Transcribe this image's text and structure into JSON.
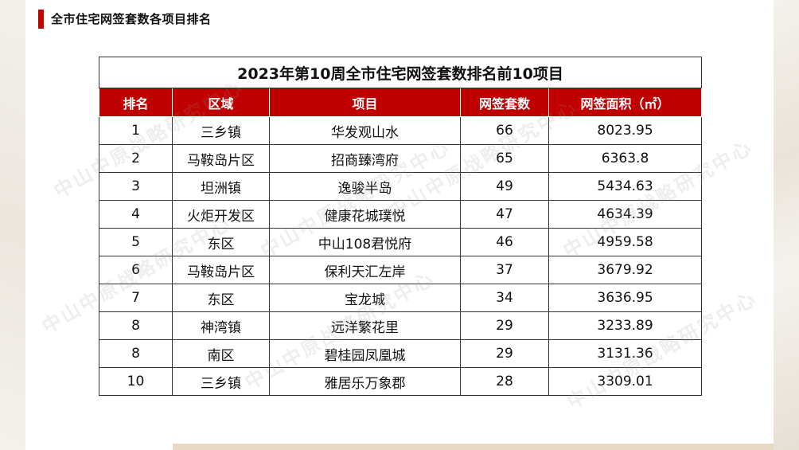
{
  "header": {
    "title": "全市住宅网签套数各项目排名"
  },
  "table": {
    "caption": "2023年第10周全市住宅网签套数排名前10项目",
    "columns": [
      "排名",
      "区域",
      "项目",
      "网签套数",
      "网签面积（㎡）"
    ],
    "rows": [
      [
        "1",
        "三乡镇",
        "华发观山水",
        "66",
        "8023.95"
      ],
      [
        "2",
        "马鞍岛片区",
        "招商臻湾府",
        "65",
        "6363.8"
      ],
      [
        "3",
        "坦洲镇",
        "逸骏半岛",
        "49",
        "5434.63"
      ],
      [
        "4",
        "火炬开发区",
        "健康花城璞悦",
        "47",
        "4634.39"
      ],
      [
        "5",
        "东区",
        "中山108君悦府",
        "46",
        "4959.58"
      ],
      [
        "6",
        "马鞍岛片区",
        "保利天汇左岸",
        "37",
        "3679.92"
      ],
      [
        "7",
        "东区",
        "宝龙城",
        "34",
        "3636.95"
      ],
      [
        "8",
        "神湾镇",
        "远洋繁花里",
        "29",
        "3233.89"
      ],
      [
        "8",
        "南区",
        "碧桂园凤凰城",
        "29",
        "3131.36"
      ],
      [
        "10",
        "三乡镇",
        "雅居乐万象郡",
        "28",
        "3309.01"
      ]
    ]
  },
  "watermark": {
    "text": "中山中原战略研究中心"
  },
  "colors": {
    "accent": "#c00000"
  }
}
